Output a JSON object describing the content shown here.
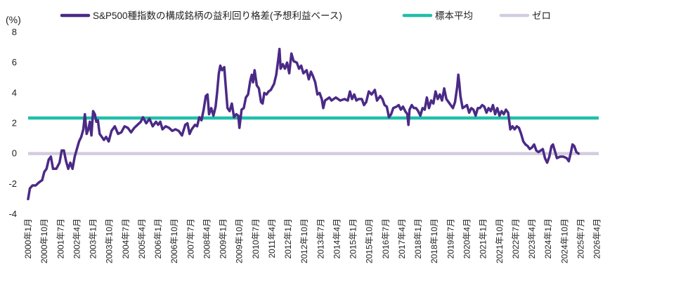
{
  "chart_data": {
    "type": "line",
    "ylabel": "(%)",
    "ylim": [
      -4,
      8
    ],
    "yticks": [
      "8",
      "6",
      "4",
      "2",
      "0",
      "-2",
      "-4"
    ],
    "xlim": [
      2000.0,
      2026.33
    ],
    "xticks": [
      {
        "label": "2000年1月",
        "x": 2000.0
      },
      {
        "label": "2000年10月",
        "x": 2000.75
      },
      {
        "label": "2001年7月",
        "x": 2001.5
      },
      {
        "label": "2002年4月",
        "x": 2002.25
      },
      {
        "label": "2003年1月",
        "x": 2003.0
      },
      {
        "label": "2003年10月",
        "x": 2003.75
      },
      {
        "label": "2004年7月",
        "x": 2004.5
      },
      {
        "label": "2005年4月",
        "x": 2005.25
      },
      {
        "label": "2006年1月",
        "x": 2006.0
      },
      {
        "label": "2006年10月",
        "x": 2006.75
      },
      {
        "label": "2007年7月",
        "x": 2007.5
      },
      {
        "label": "2008年4月",
        "x": 2008.25
      },
      {
        "label": "2009年1月",
        "x": 2009.0
      },
      {
        "label": "2009年10月",
        "x": 2009.75
      },
      {
        "label": "2010年7月",
        "x": 2010.5
      },
      {
        "label": "2011年4月",
        "x": 2011.25
      },
      {
        "label": "2012年1月",
        "x": 2012.0
      },
      {
        "label": "2012年10月",
        "x": 2012.75
      },
      {
        "label": "2013年7月",
        "x": 2013.5
      },
      {
        "label": "2014年4月",
        "x": 2014.25
      },
      {
        "label": "2015年1月",
        "x": 2015.0
      },
      {
        "label": "2015年10月",
        "x": 2015.75
      },
      {
        "label": "2016年7月",
        "x": 2016.5
      },
      {
        "label": "2017年4月",
        "x": 2017.25
      },
      {
        "label": "2018年1月",
        "x": 2018.0
      },
      {
        "label": "2018年10月",
        "x": 2018.75
      },
      {
        "label": "2019年7月",
        "x": 2019.5
      },
      {
        "label": "2020年4月",
        "x": 2020.25
      },
      {
        "label": "2021年1月",
        "x": 2021.0
      },
      {
        "label": "2021年10月",
        "x": 2021.75
      },
      {
        "label": "2022年7月",
        "x": 2022.5
      },
      {
        "label": "2023年4月",
        "x": 2023.25
      },
      {
        "label": "2024年1月",
        "x": 2024.0
      },
      {
        "label": "2024年10月",
        "x": 2024.75
      },
      {
        "label": "2025年7月",
        "x": 2025.5
      },
      {
        "label": "2026年4月",
        "x": 2026.25
      }
    ],
    "legend_position": "top",
    "grid": false,
    "series": [
      {
        "name": "S&P500種指数の構成銘柄の益利回り格差(予想利益ベース)",
        "color": "#4b2a86",
        "kind": "line",
        "points": [
          [
            2000.0,
            -3.0
          ],
          [
            2000.08,
            -2.3
          ],
          [
            2000.2,
            -2.1
          ],
          [
            2000.35,
            -2.1
          ],
          [
            2000.5,
            -1.9
          ],
          [
            2000.65,
            -1.75
          ],
          [
            2000.75,
            -1.2
          ],
          [
            2000.85,
            -1.0
          ],
          [
            2000.95,
            -0.4
          ],
          [
            2001.05,
            -0.2
          ],
          [
            2001.15,
            -1.0
          ],
          [
            2001.3,
            -1.0
          ],
          [
            2001.45,
            -0.6
          ],
          [
            2001.55,
            0.2
          ],
          [
            2001.65,
            0.2
          ],
          [
            2001.75,
            -0.5
          ],
          [
            2001.85,
            -1.0
          ],
          [
            2001.95,
            -0.6
          ],
          [
            2002.05,
            -1.0
          ],
          [
            2002.15,
            -0.2
          ],
          [
            2002.25,
            0.3
          ],
          [
            2002.35,
            0.8
          ],
          [
            2002.45,
            1.1
          ],
          [
            2002.55,
            1.6
          ],
          [
            2002.62,
            2.6
          ],
          [
            2002.7,
            1.3
          ],
          [
            2002.78,
            1.6
          ],
          [
            2002.85,
            2.1
          ],
          [
            2002.92,
            1.2
          ],
          [
            2003.0,
            2.8
          ],
          [
            2003.08,
            2.6
          ],
          [
            2003.15,
            2.1
          ],
          [
            2003.22,
            2.2
          ],
          [
            2003.3,
            1.3
          ],
          [
            2003.4,
            1.1
          ],
          [
            2003.5,
            0.9
          ],
          [
            2003.6,
            1.1
          ],
          [
            2003.72,
            0.8
          ],
          [
            2003.85,
            1.5
          ],
          [
            2004.0,
            1.8
          ],
          [
            2004.15,
            1.3
          ],
          [
            2004.3,
            1.4
          ],
          [
            2004.45,
            1.8
          ],
          [
            2004.6,
            1.7
          ],
          [
            2004.75,
            1.4
          ],
          [
            2004.9,
            1.7
          ],
          [
            2005.05,
            1.9
          ],
          [
            2005.2,
            2.1
          ],
          [
            2005.3,
            2.4
          ],
          [
            2005.45,
            2.0
          ],
          [
            2005.6,
            2.3
          ],
          [
            2005.75,
            1.8
          ],
          [
            2005.9,
            2.1
          ],
          [
            2006.0,
            1.9
          ],
          [
            2006.1,
            2.1
          ],
          [
            2006.2,
            1.6
          ],
          [
            2006.35,
            1.8
          ],
          [
            2006.5,
            1.7
          ],
          [
            2006.65,
            1.5
          ],
          [
            2006.8,
            1.6
          ],
          [
            2006.95,
            1.5
          ],
          [
            2007.1,
            1.2
          ],
          [
            2007.25,
            1.9
          ],
          [
            2007.35,
            2.0
          ],
          [
            2007.45,
            1.3
          ],
          [
            2007.55,
            1.6
          ],
          [
            2007.7,
            1.9
          ],
          [
            2007.8,
            1.8
          ],
          [
            2007.9,
            2.4
          ],
          [
            2008.0,
            2.2
          ],
          [
            2008.1,
            2.9
          ],
          [
            2008.2,
            3.8
          ],
          [
            2008.28,
            3.9
          ],
          [
            2008.35,
            2.6
          ],
          [
            2008.45,
            3.0
          ],
          [
            2008.55,
            2.5
          ],
          [
            2008.65,
            3.1
          ],
          [
            2008.72,
            4.0
          ],
          [
            2008.8,
            5.3
          ],
          [
            2008.87,
            5.8
          ],
          [
            2008.95,
            5.5
          ],
          [
            2009.05,
            5.7
          ],
          [
            2009.12,
            4.4
          ],
          [
            2009.2,
            3.0
          ],
          [
            2009.3,
            2.8
          ],
          [
            2009.4,
            3.3
          ],
          [
            2009.5,
            2.4
          ],
          [
            2009.6,
            2.6
          ],
          [
            2009.7,
            2.5
          ],
          [
            2009.75,
            1.7
          ],
          [
            2009.85,
            2.9
          ],
          [
            2009.95,
            3.0
          ],
          [
            2010.05,
            3.7
          ],
          [
            2010.15,
            3.9
          ],
          [
            2010.25,
            4.8
          ],
          [
            2010.32,
            5.2
          ],
          [
            2010.38,
            4.7
          ],
          [
            2010.45,
            5.5
          ],
          [
            2010.55,
            4.5
          ],
          [
            2010.65,
            4.3
          ],
          [
            2010.75,
            3.4
          ],
          [
            2010.82,
            3.3
          ],
          [
            2010.9,
            4.0
          ],
          [
            2011.0,
            3.9
          ],
          [
            2011.1,
            4.1
          ],
          [
            2011.2,
            4.2
          ],
          [
            2011.35,
            4.6
          ],
          [
            2011.45,
            5.2
          ],
          [
            2011.55,
            6.3
          ],
          [
            2011.6,
            6.9
          ],
          [
            2011.65,
            5.6
          ],
          [
            2011.75,
            5.9
          ],
          [
            2011.85,
            5.6
          ],
          [
            2011.95,
            6.0
          ],
          [
            2012.05,
            5.3
          ],
          [
            2012.15,
            6.6
          ],
          [
            2012.25,
            6.1
          ],
          [
            2012.4,
            6.0
          ],
          [
            2012.5,
            5.6
          ],
          [
            2012.6,
            5.8
          ],
          [
            2012.7,
            5.3
          ],
          [
            2012.85,
            5.5
          ],
          [
            2012.95,
            4.9
          ],
          [
            2013.05,
            5.4
          ],
          [
            2013.15,
            5.1
          ],
          [
            2013.25,
            4.7
          ],
          [
            2013.35,
            3.9
          ],
          [
            2013.45,
            4.0
          ],
          [
            2013.55,
            3.6
          ],
          [
            2013.62,
            3.0
          ],
          [
            2013.7,
            3.5
          ],
          [
            2013.8,
            3.6
          ],
          [
            2013.9,
            3.7
          ],
          [
            2014.0,
            3.5
          ],
          [
            2014.2,
            3.7
          ],
          [
            2014.4,
            3.5
          ],
          [
            2014.6,
            3.6
          ],
          [
            2014.75,
            3.5
          ],
          [
            2014.85,
            4.1
          ],
          [
            2014.95,
            3.6
          ],
          [
            2015.05,
            3.9
          ],
          [
            2015.15,
            3.5
          ],
          [
            2015.25,
            3.6
          ],
          [
            2015.4,
            3.6
          ],
          [
            2015.5,
            3.2
          ],
          [
            2015.6,
            3.4
          ],
          [
            2015.72,
            4.1
          ],
          [
            2015.85,
            3.9
          ],
          [
            2016.0,
            4.2
          ],
          [
            2016.1,
            3.5
          ],
          [
            2016.25,
            3.8
          ],
          [
            2016.35,
            3.6
          ],
          [
            2016.45,
            3.2
          ],
          [
            2016.55,
            3.1
          ],
          [
            2016.65,
            2.4
          ],
          [
            2016.75,
            2.6
          ],
          [
            2016.85,
            3.0
          ],
          [
            2017.0,
            3.1
          ],
          [
            2017.1,
            3.2
          ],
          [
            2017.2,
            2.9
          ],
          [
            2017.3,
            3.1
          ],
          [
            2017.4,
            2.8
          ],
          [
            2017.5,
            2.6
          ],
          [
            2017.55,
            1.9
          ],
          [
            2017.6,
            2.9
          ],
          [
            2017.7,
            3.2
          ],
          [
            2017.8,
            3.0
          ],
          [
            2017.9,
            3.0
          ],
          [
            2018.0,
            2.8
          ],
          [
            2018.1,
            2.5
          ],
          [
            2018.2,
            3.0
          ],
          [
            2018.3,
            2.9
          ],
          [
            2018.4,
            3.7
          ],
          [
            2018.5,
            3.0
          ],
          [
            2018.6,
            3.5
          ],
          [
            2018.7,
            3.3
          ],
          [
            2018.8,
            4.1
          ],
          [
            2018.9,
            3.6
          ],
          [
            2019.0,
            3.9
          ],
          [
            2019.1,
            3.5
          ],
          [
            2019.2,
            4.3
          ],
          [
            2019.3,
            3.6
          ],
          [
            2019.4,
            3.4
          ],
          [
            2019.5,
            3.2
          ],
          [
            2019.6,
            3.0
          ],
          [
            2019.7,
            3.4
          ],
          [
            2019.8,
            4.4
          ],
          [
            2019.85,
            5.2
          ],
          [
            2019.9,
            4.6
          ],
          [
            2019.95,
            3.8
          ],
          [
            2020.05,
            3.0
          ],
          [
            2020.15,
            3.1
          ],
          [
            2020.25,
            3.2
          ],
          [
            2020.35,
            2.7
          ],
          [
            2020.45,
            3.0
          ],
          [
            2020.55,
            2.9
          ],
          [
            2020.65,
            2.5
          ],
          [
            2020.75,
            3.0
          ],
          [
            2020.85,
            3.0
          ],
          [
            2020.95,
            3.2
          ],
          [
            2021.05,
            3.1
          ],
          [
            2021.15,
            2.7
          ],
          [
            2021.25,
            3.0
          ],
          [
            2021.35,
            2.8
          ],
          [
            2021.45,
            3.2
          ],
          [
            2021.55,
            2.6
          ],
          [
            2021.65,
            3.0
          ],
          [
            2021.75,
            2.5
          ],
          [
            2021.85,
            2.8
          ],
          [
            2021.95,
            2.6
          ],
          [
            2022.05,
            2.9
          ],
          [
            2022.15,
            2.7
          ],
          [
            2022.25,
            1.6
          ],
          [
            2022.35,
            1.8
          ],
          [
            2022.45,
            1.6
          ],
          [
            2022.55,
            1.8
          ],
          [
            2022.65,
            1.7
          ],
          [
            2022.75,
            1.3
          ],
          [
            2022.85,
            0.8
          ],
          [
            2022.95,
            0.6
          ],
          [
            2023.05,
            0.5
          ],
          [
            2023.15,
            0.3
          ],
          [
            2023.25,
            0.4
          ],
          [
            2023.35,
            0.6
          ],
          [
            2023.45,
            0.2
          ],
          [
            2023.55,
            0.1
          ],
          [
            2023.65,
            0.2
          ],
          [
            2023.75,
            0.3
          ],
          [
            2023.85,
            -0.3
          ],
          [
            2023.95,
            -0.6
          ],
          [
            2024.05,
            -0.2
          ],
          [
            2024.15,
            0.5
          ],
          [
            2024.22,
            0.6
          ],
          [
            2024.3,
            0.2
          ],
          [
            2024.4,
            -0.3
          ],
          [
            2024.55,
            -0.2
          ],
          [
            2024.7,
            -0.2
          ],
          [
            2024.85,
            -0.3
          ],
          [
            2024.95,
            -0.5
          ],
          [
            2025.05,
            0.1
          ],
          [
            2025.12,
            0.6
          ],
          [
            2025.2,
            0.5
          ],
          [
            2025.3,
            0.1
          ],
          [
            2025.4,
            0.0
          ]
        ]
      },
      {
        "name": "標本平均",
        "color": "#1fbfa9",
        "kind": "hline",
        "value": 2.35
      },
      {
        "name": "ゼロ",
        "color": "#d3ccdf",
        "kind": "hline",
        "value": 0
      }
    ]
  }
}
